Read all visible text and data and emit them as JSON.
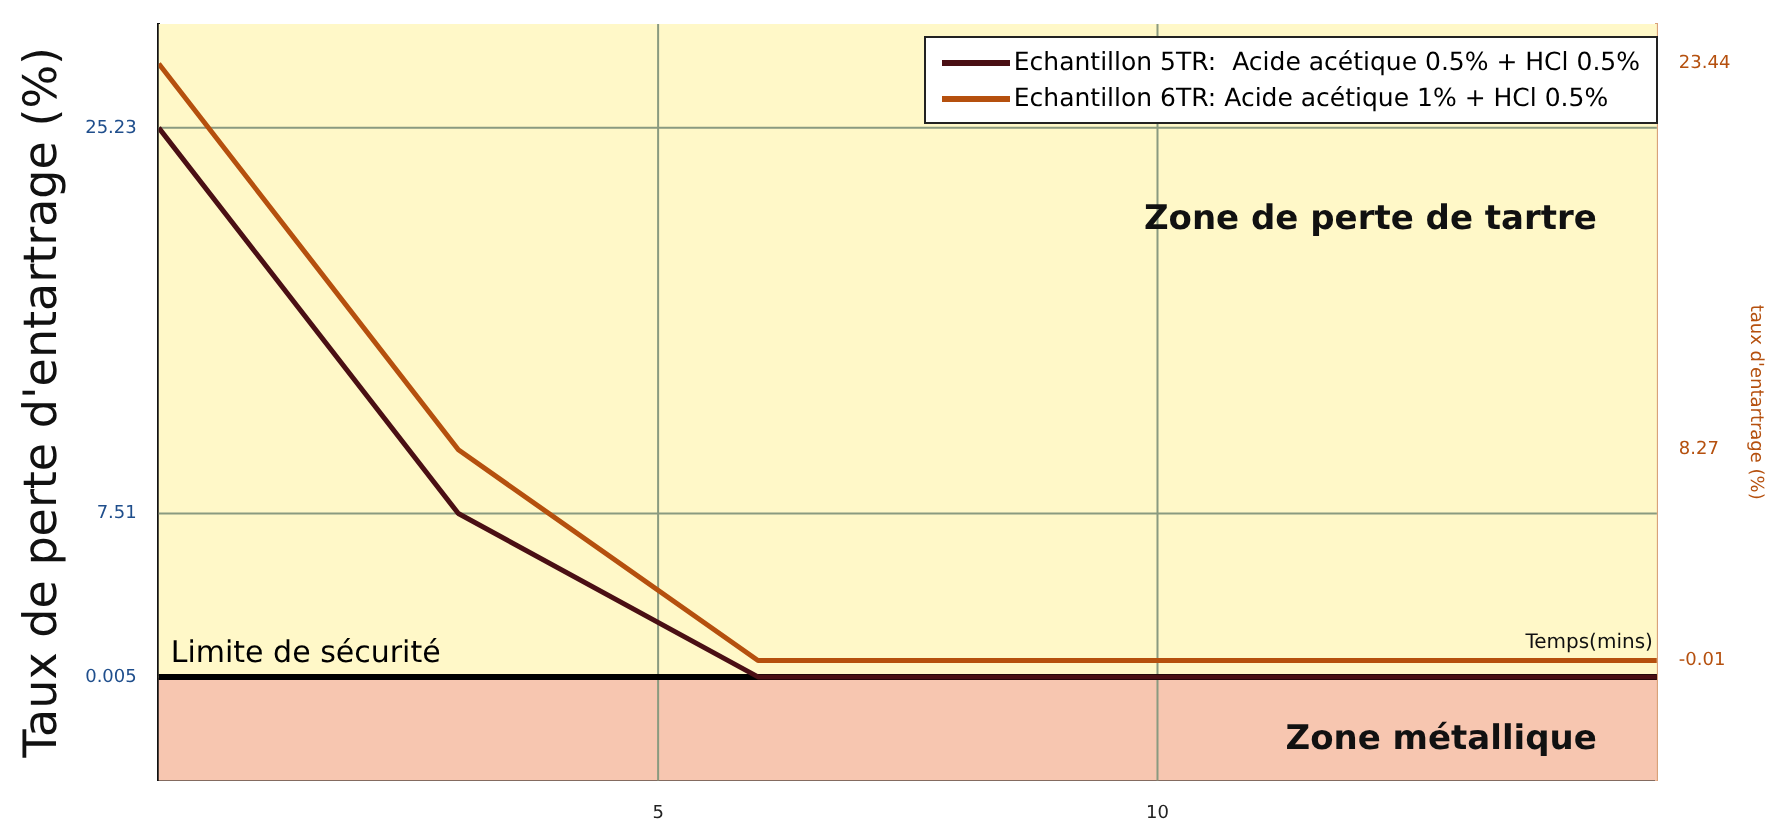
{
  "chart_data": {
    "type": "line",
    "xlabel": "Temps(mins)",
    "ylabel": "Taux de perte d'entartrage (%)",
    "y2label": "taux d'entartrage (%)",
    "xlim": [
      0,
      15
    ],
    "xticks": [
      5,
      10
    ],
    "ylim": [
      -4.75,
      30
    ],
    "yticks": [
      0.005,
      7.51,
      25.23
    ],
    "y2lim": [
      -4.72,
      25
    ],
    "y2ticks": [
      -0.01,
      8.27,
      23.44
    ],
    "grid": true,
    "legend": "top right",
    "marker": "none",
    "line_style": "solid",
    "series": [
      {
        "name": "Echantillon 5TR:  Acide acétique 0.5% + HCl 0.5%",
        "color": "#4a0f14",
        "x": [
          0,
          3,
          6,
          15
        ],
        "values": [
          25.23,
          7.51,
          0.005,
          0.005
        ]
      },
      {
        "name": "Echantillon 6TR: Acide acétique 1% + HCl 0.5%",
        "color": "#b5500e",
        "axis": "y2",
        "x": [
          0,
          3,
          6,
          15
        ],
        "values": [
          23.44,
          8.27,
          -0.01,
          -0.01
        ]
      }
    ],
    "bands": [
      {
        "axis": "y",
        "from": 0.005,
        "to": 30,
        "label": "Zone de perte de tartre",
        "color": "#fff8c8"
      },
      {
        "axis": "y",
        "from": -4.75,
        "to": 0.005,
        "label": "Zone métallique",
        "color": "#f7c6b0"
      }
    ],
    "ref_lines": [
      {
        "axis": "y",
        "value": 0.005,
        "label": "Limite de sécurité",
        "color": "#000000",
        "line_style": "solid"
      }
    ]
  }
}
